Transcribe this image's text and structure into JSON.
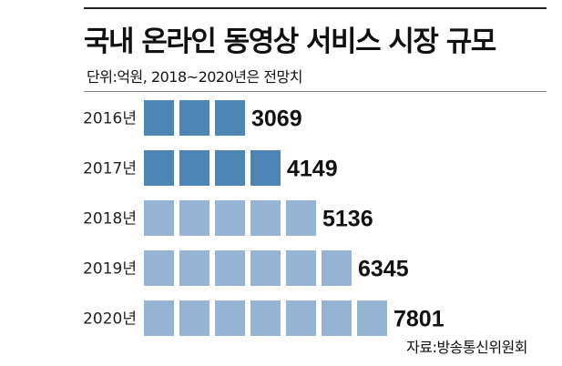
{
  "header": {
    "title": "국내 온라인 동영상 서비스 시장 규모",
    "unit_note": "단위:억원, 2018~2020년은 전망치"
  },
  "source": "자료:방송통신위원회",
  "colors": {
    "actual": "#4d85b5",
    "forecast": "#97b3d4",
    "text": "#111111"
  },
  "chart_data": {
    "type": "bar",
    "orientation": "horizontal",
    "title": "국내 온라인 동영상 서비스 시장 규모",
    "unit": "억원",
    "categories": [
      "2016년",
      "2017년",
      "2018년",
      "2019년",
      "2020년"
    ],
    "values": [
      3069,
      4149,
      5136,
      6345,
      7801
    ],
    "forecast": [
      false,
      false,
      true,
      true,
      true
    ],
    "grid": false,
    "legend": "none"
  }
}
